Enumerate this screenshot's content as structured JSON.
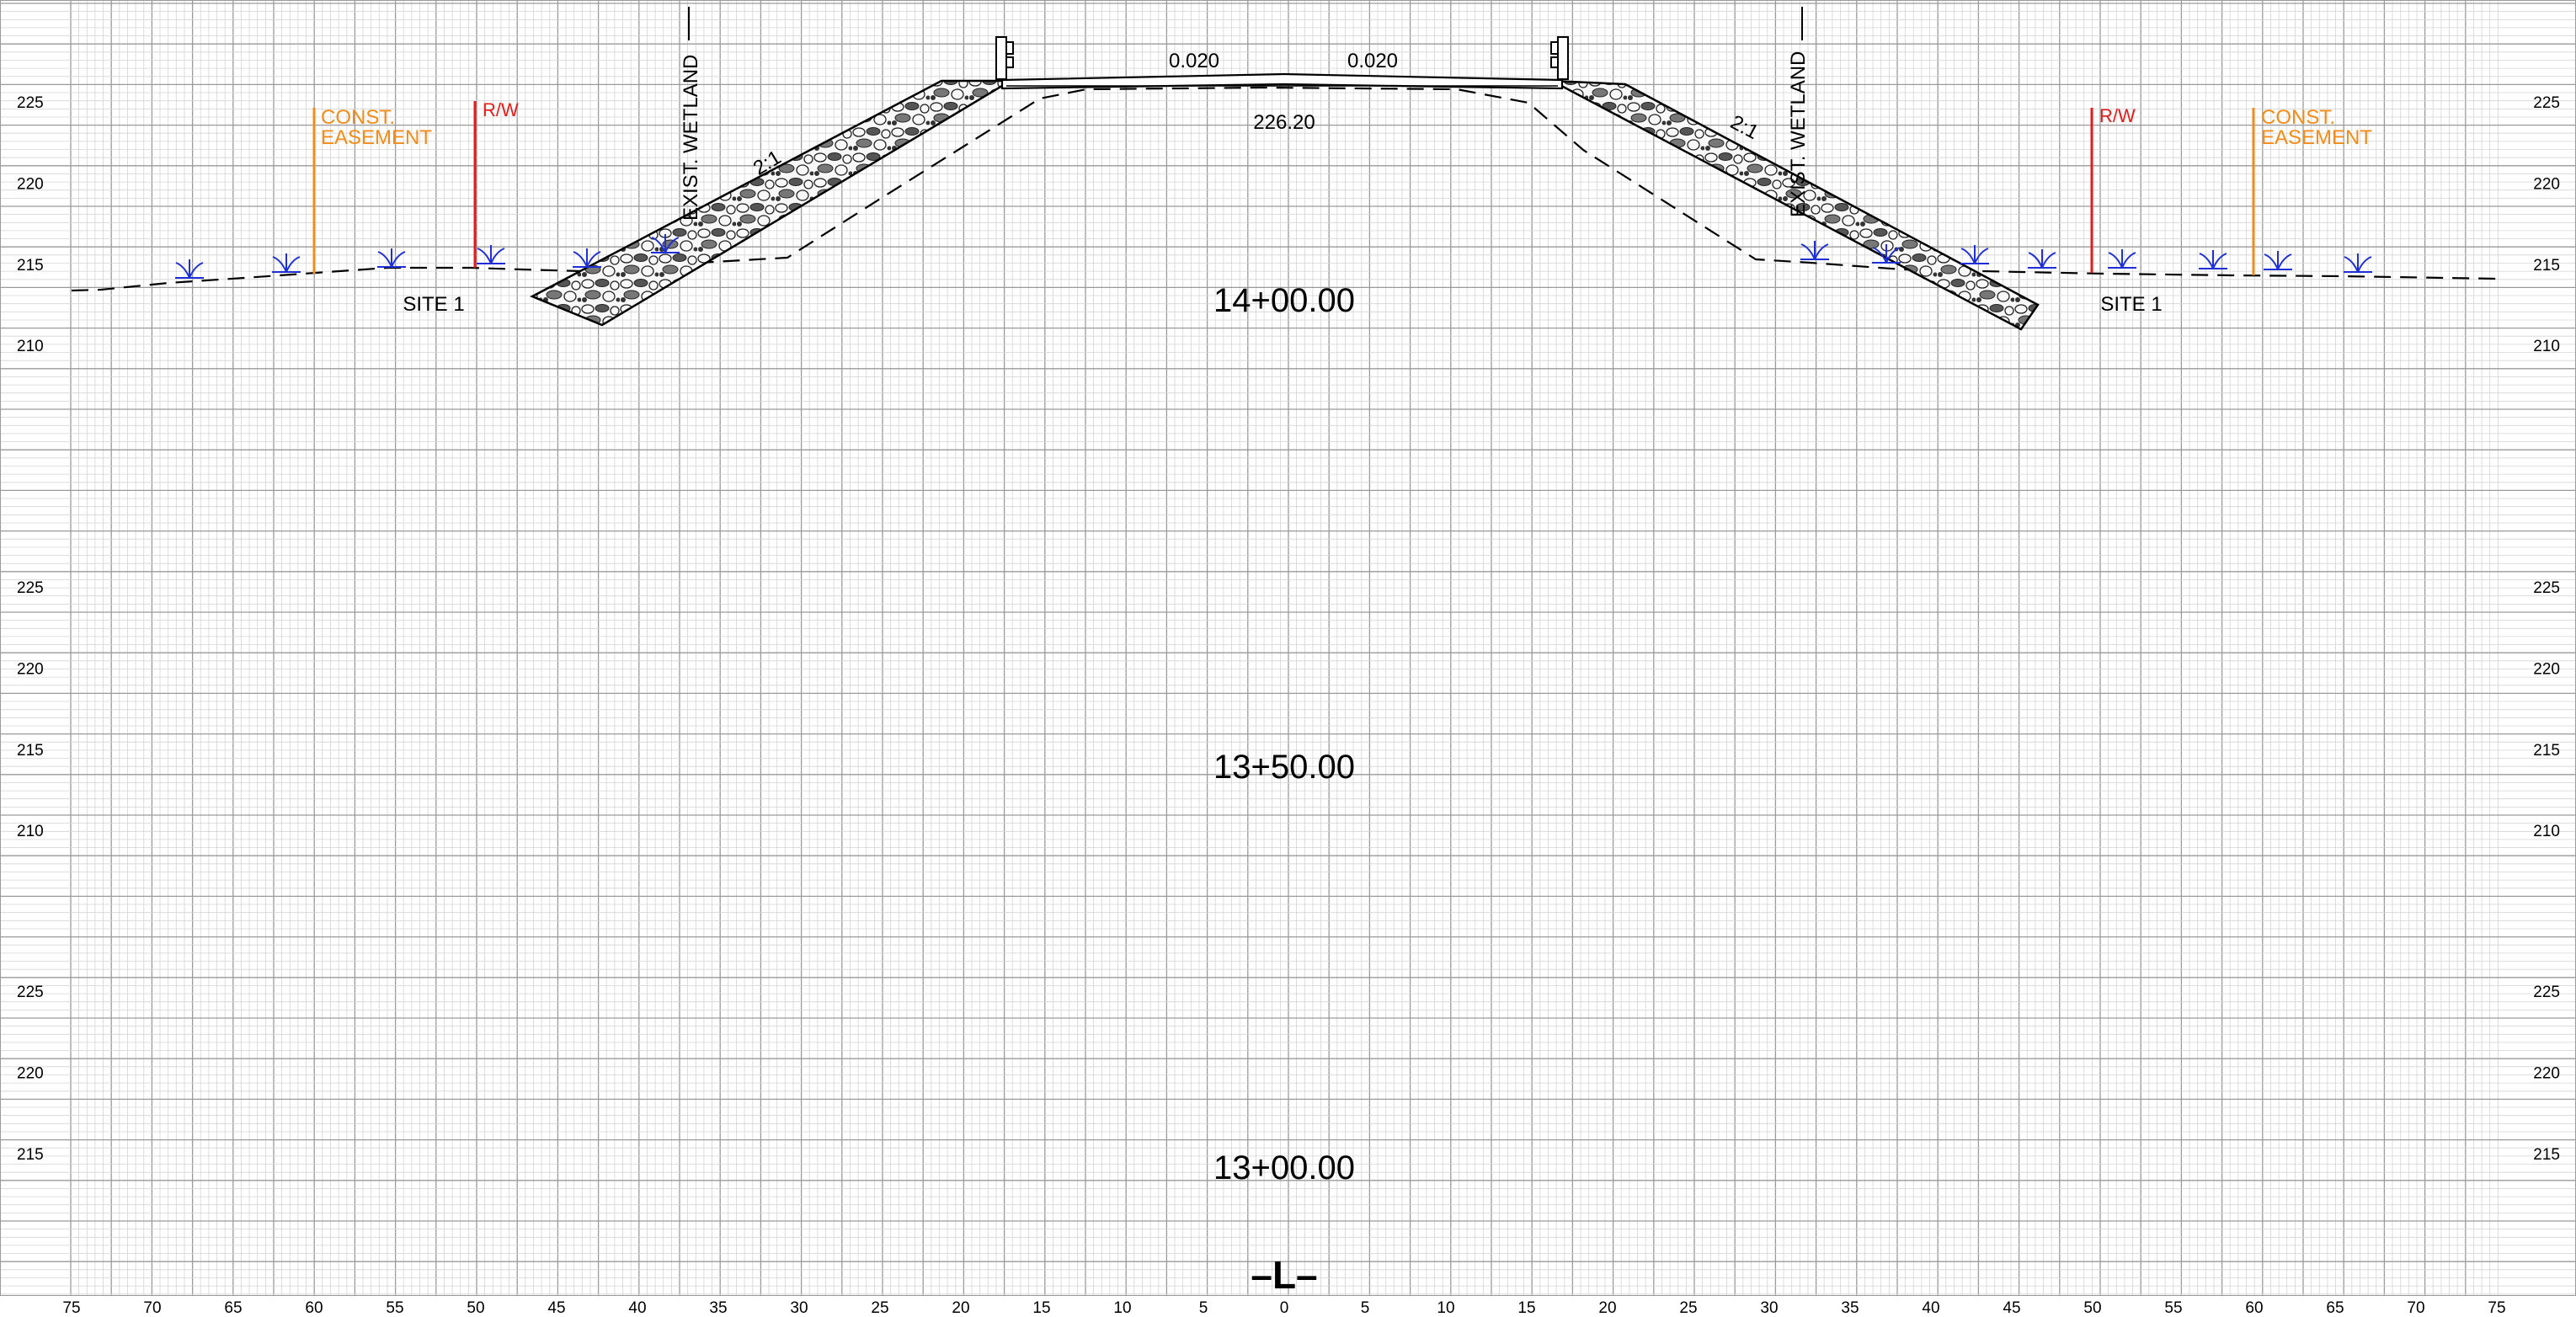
{
  "colors": {
    "grid_minor": "#d4d4d4",
    "grid_major": "#9a9a9a",
    "construction_easement": "#f28c18",
    "right_of_way": "#e31b1b",
    "wetland_symbol": "#1f2fd6",
    "linework": "#000000"
  },
  "alignment_label": "–L–",
  "offset_labels": [
    "75",
    "70",
    "65",
    "60",
    "55",
    "50",
    "45",
    "40",
    "35",
    "30",
    "25",
    "20",
    "15",
    "10",
    "5",
    "0",
    "5",
    "10",
    "15",
    "20",
    "25",
    "30",
    "35",
    "40",
    "45",
    "50",
    "55",
    "60",
    "65",
    "70",
    "75"
  ],
  "sections": [
    {
      "station": "14+00.00",
      "elevation_labels": [
        "225",
        "220",
        "215",
        "210"
      ],
      "annotations": {
        "cross_slope_left": "0.020",
        "cross_slope_right": "0.020",
        "grade_elevation": "226.20",
        "side_slope_left": "2:1",
        "side_slope_right": "2:1",
        "wetland_left": "EXIST. WETLAND",
        "wetland_right": "EXIST. WETLAND",
        "site_left": "SITE 1",
        "site_right": "SITE 1",
        "easement_left": [
          "CONST.",
          "EASEMENT"
        ],
        "easement_right": [
          "CONST.",
          "EASEMENT"
        ],
        "rw_left": "R/W",
        "rw_right": "R/W"
      }
    },
    {
      "station": "13+50.00",
      "elevation_labels": [
        "225",
        "220",
        "215",
        "210"
      ]
    },
    {
      "station": "13+00.00",
      "elevation_labels": [
        "225",
        "220",
        "215"
      ]
    }
  ]
}
